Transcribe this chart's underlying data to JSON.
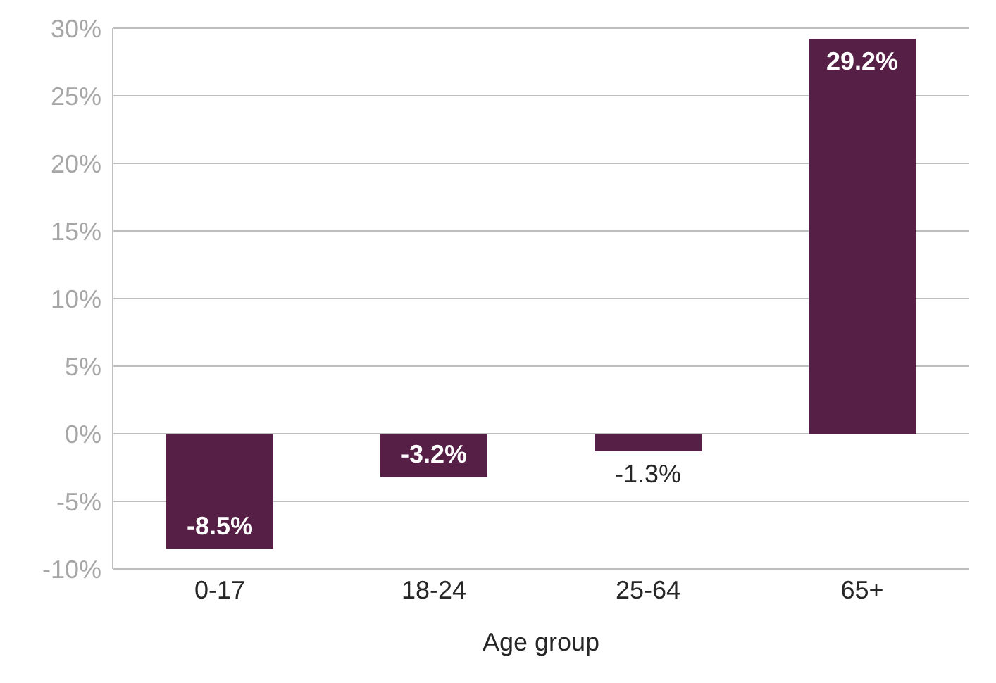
{
  "chart_data": {
    "type": "bar",
    "xlabel": "Age group",
    "categories": [
      "0-17",
      "18-24",
      "25-64",
      "65+"
    ],
    "values": [
      -8.5,
      -3.2,
      -1.3,
      29.2
    ],
    "color": "#561f45",
    "value_labels": [
      "-8.5%",
      "-3.2%",
      "-1.3%",
      "29.2%"
    ],
    "ylim": [
      -10,
      30
    ],
    "yticks": [
      {
        "value": -10,
        "label": "-10%"
      },
      {
        "value": -5,
        "label": "-5%"
      },
      {
        "value": 0,
        "label": "0%"
      },
      {
        "value": 5,
        "label": "5%"
      },
      {
        "value": 10,
        "label": "10%"
      },
      {
        "value": 15,
        "label": "15%"
      },
      {
        "value": 20,
        "label": "20%"
      },
      {
        "value": 25,
        "label": "25%"
      },
      {
        "value": 30,
        "label": "30%"
      }
    ],
    "grid": "y",
    "legend": false
  }
}
